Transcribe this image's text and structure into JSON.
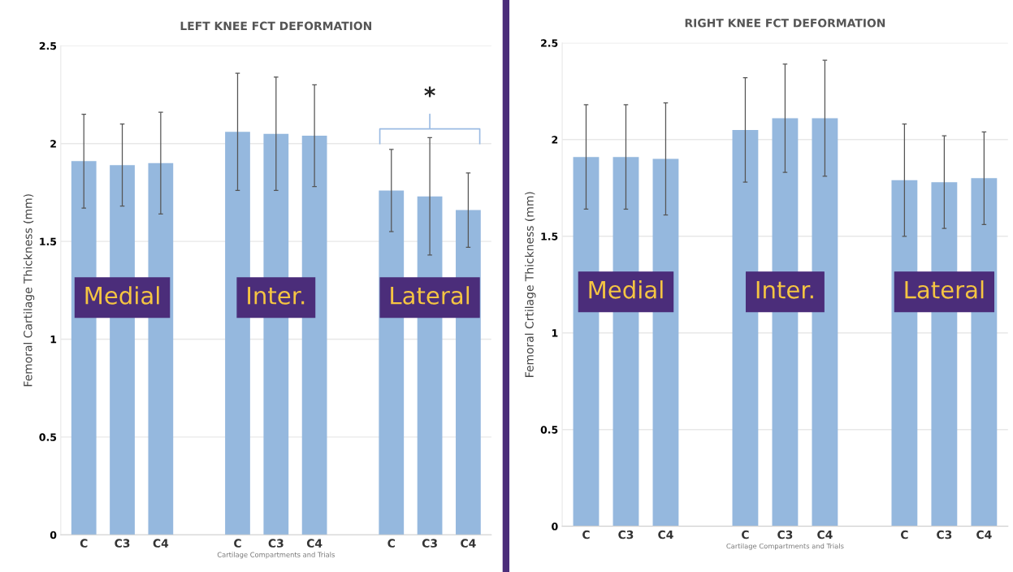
{
  "chart_data": [
    {
      "type": "bar",
      "title": "LEFT KNEE FCT DEFORMATION",
      "xlabel": "Cartilage Compartments and Trials",
      "ylabel": "Femoral Cartilage Thickness (mm)",
      "categories": [
        "C",
        "C3",
        "C4",
        null,
        "C",
        "C3",
        "C4",
        null,
        "C",
        "C3",
        "C4"
      ],
      "values": [
        1.91,
        1.89,
        1.9,
        null,
        2.06,
        2.05,
        2.04,
        null,
        1.76,
        1.73,
        1.66
      ],
      "errors": [
        0.24,
        0.21,
        0.26,
        null,
        0.3,
        0.29,
        0.26,
        null,
        0.21,
        0.3,
        0.19
      ],
      "color": "#95b8de",
      "ylim": [
        0,
        2.5
      ],
      "yticks": [
        0,
        0.5,
        1,
        1.5,
        2,
        2.5
      ],
      "grid": "y",
      "annotations": [
        "Medial",
        "Inter.",
        "Lateral",
        "*"
      ]
    },
    {
      "type": "bar",
      "title": "RIGHT KNEE FCT DEFORMATION",
      "xlabel": "Cartilage Compartments and Trials",
      "ylabel": "Femoral Crtilage Thickness (mm)",
      "categories": [
        "C",
        "C3",
        "C4",
        null,
        "C",
        "C3",
        "C4",
        null,
        "C",
        "C3",
        "C4"
      ],
      "values": [
        1.91,
        1.91,
        1.9,
        null,
        2.05,
        2.11,
        2.11,
        null,
        1.79,
        1.78,
        1.8
      ],
      "errors": [
        0.27,
        0.27,
        0.29,
        null,
        0.27,
        0.28,
        0.3,
        null,
        0.29,
        0.24,
        0.24
      ],
      "color": "#95b8de",
      "ylim": [
        0,
        2.5
      ],
      "yticks": [
        0,
        0.5,
        1,
        1.5,
        2,
        2.5
      ],
      "grid": "y",
      "annotations": [
        "Medial",
        "Inter.",
        "Lateral"
      ]
    }
  ]
}
